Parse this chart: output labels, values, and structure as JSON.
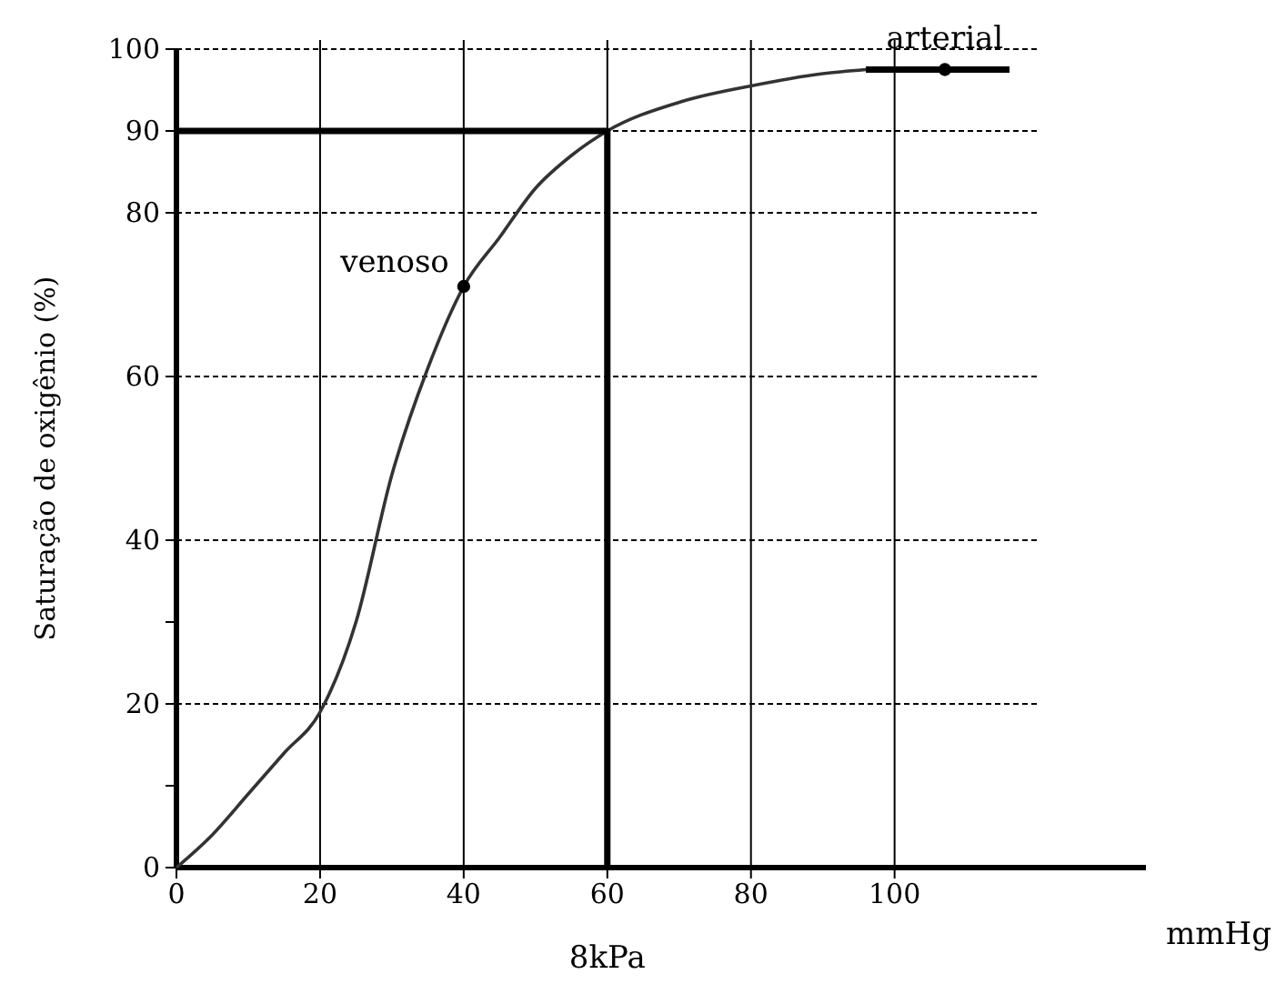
{
  "chart_data": {
    "type": "line",
    "xlabel": "8kPa",
    "ylabel": "Saturação de oxigênio (%)",
    "xlim": [
      0,
      135
    ],
    "ylim": [
      0,
      100
    ],
    "xticks": [
      0,
      20,
      40,
      60,
      80,
      100
    ],
    "yticks": [
      0,
      {
        "value": 10,
        "label": null
      },
      20,
      {
        "value": 30,
        "label": null
      },
      40,
      60,
      80,
      90,
      100
    ],
    "grid": true,
    "line_style": "solid",
    "marker": "none",
    "series": [
      {
        "color": "#333333",
        "x": [
          0,
          5,
          10,
          15,
          20,
          25,
          30,
          35,
          40,
          45,
          50,
          55,
          60,
          70,
          80,
          90,
          96
        ],
        "values": [
          0,
          4,
          9,
          14,
          19,
          30,
          48,
          61,
          71,
          77,
          83,
          87,
          90,
          93.5,
          95.5,
          97,
          97.5
        ]
      },
      {
        "color": "#000000",
        "x": [
          0,
          60,
          60
        ],
        "values": [
          90,
          90,
          0
        ]
      },
      {
        "color": "#000000",
        "x": [
          96,
          116
        ],
        "values": [
          97.5,
          97.5
        ]
      },
      {
        "type": "scatter",
        "marker": "circle",
        "color": "#000000",
        "x": [
          40,
          107
        ],
        "values": [
          71,
          97.5
        ]
      }
    ],
    "annotations": [
      {
        "text": "venoso",
        "x": 40,
        "y": 71
      },
      {
        "text": "arterial",
        "x": 107,
        "y": 97.5
      },
      "mmHg"
    ]
  }
}
